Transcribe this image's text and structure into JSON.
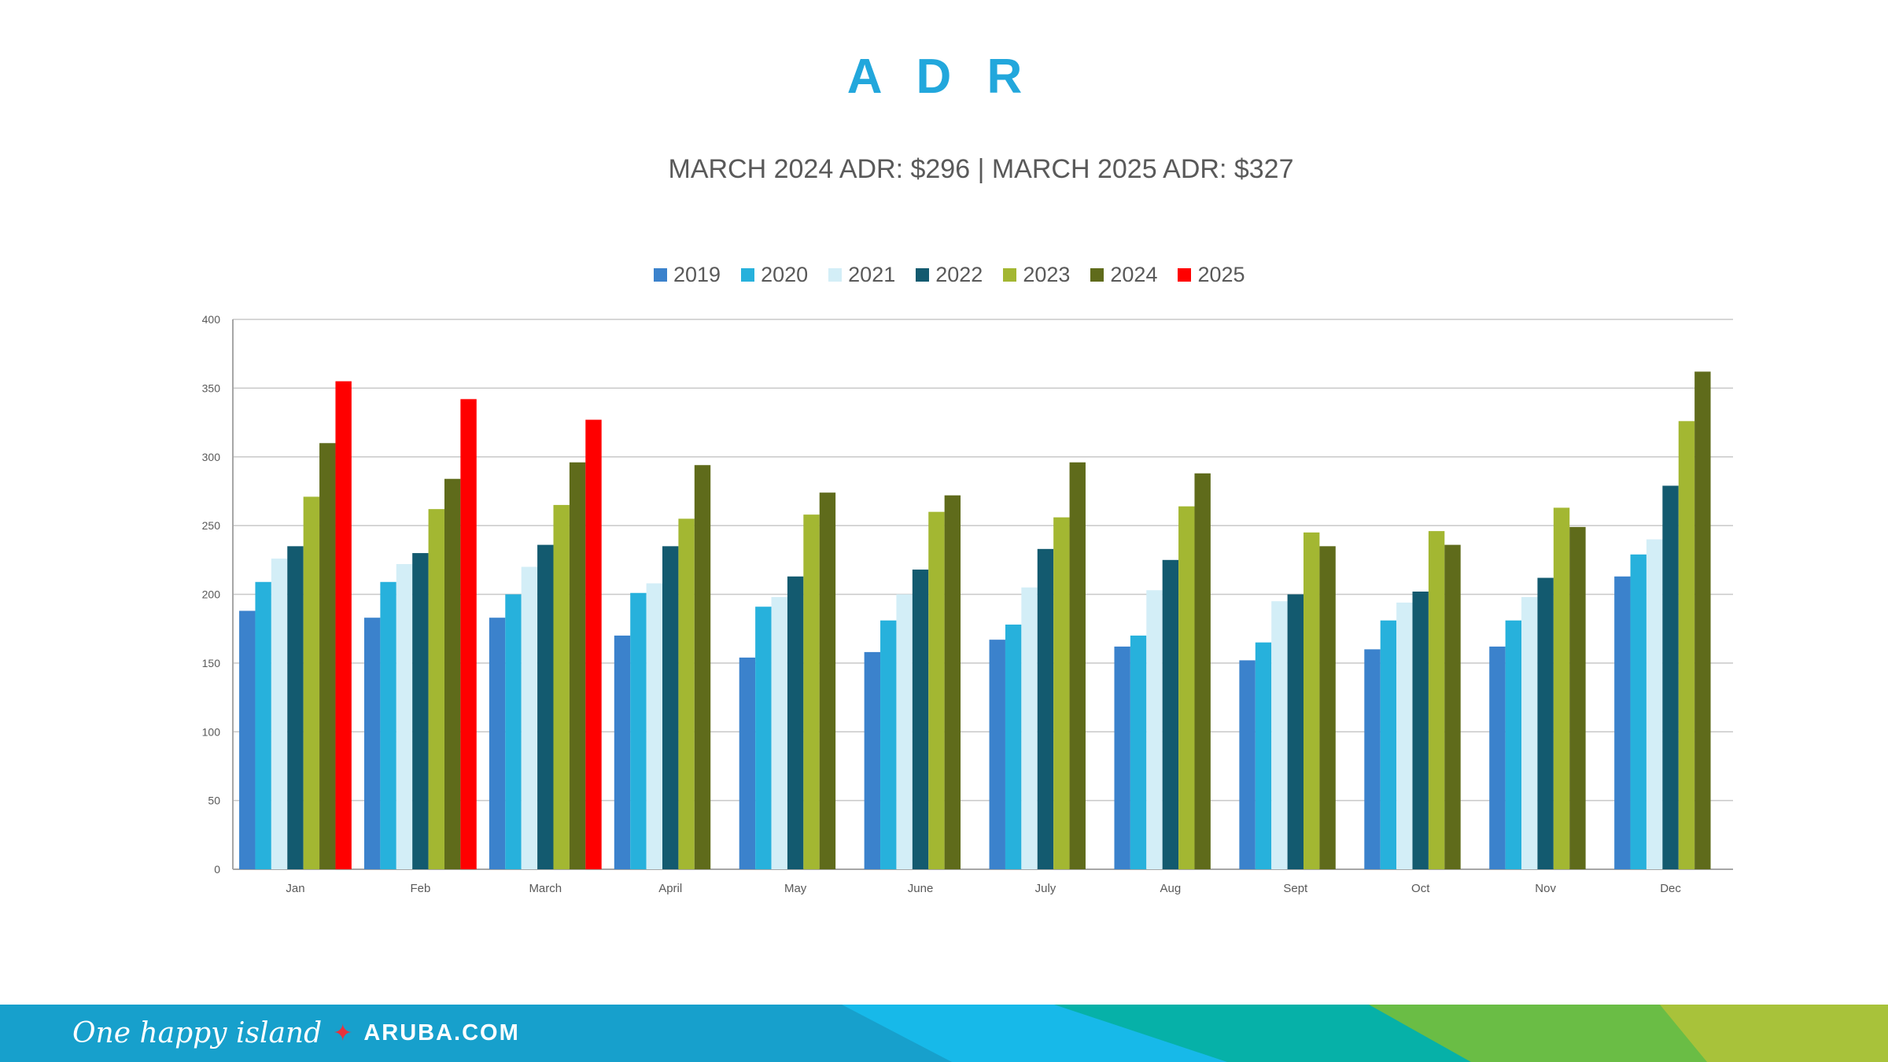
{
  "chart_data": {
    "type": "bar",
    "title": "A D R",
    "subtitle": "MARCH 2024 ADR: $296 | MARCH 2025 ADR: $327",
    "xlabel": "",
    "ylabel": "",
    "ylim": [
      0,
      400
    ],
    "yticks": [
      "0",
      "50",
      "100",
      "150",
      "200",
      "250",
      "300",
      "350",
      "400"
    ],
    "grid": true,
    "legend_position": "top",
    "categories": [
      "Jan",
      "Feb",
      "March",
      "April",
      "May",
      "June",
      "July",
      "Aug",
      "Sept",
      "Oct",
      "Nov",
      "Dec"
    ],
    "series": [
      {
        "name": "2019",
        "color": "#3b82cc",
        "values": [
          188,
          183,
          183,
          170,
          154,
          158,
          167,
          162,
          152,
          160,
          162,
          213
        ]
      },
      {
        "name": "2020",
        "color": "#27b1dc",
        "values": [
          209,
          209,
          200,
          201,
          191,
          181,
          178,
          170,
          165,
          181,
          181,
          229
        ]
      },
      {
        "name": "2021",
        "color": "#d3eef7",
        "values": [
          226,
          222,
          220,
          208,
          198,
          200,
          205,
          203,
          195,
          194,
          198,
          240
        ]
      },
      {
        "name": "2022",
        "color": "#135a6f",
        "values": [
          235,
          230,
          236,
          235,
          213,
          218,
          233,
          225,
          200,
          202,
          212,
          279
        ]
      },
      {
        "name": "2023",
        "color": "#a3b732",
        "values": [
          271,
          262,
          265,
          255,
          258,
          260,
          256,
          264,
          245,
          246,
          263,
          326
        ]
      },
      {
        "name": "2024",
        "color": "#5f6b1b",
        "values": [
          310,
          284,
          296,
          294,
          274,
          272,
          296,
          288,
          235,
          236,
          249,
          362
        ]
      },
      {
        "name": "2025",
        "color": "#ff0000",
        "values": [
          355,
          342,
          327,
          null,
          null,
          null,
          null,
          null,
          null,
          null,
          null,
          null
        ]
      }
    ]
  },
  "footer": {
    "tagline": "One happy island",
    "site": "ARUBA.COM",
    "star_icon": "four-point-star"
  }
}
